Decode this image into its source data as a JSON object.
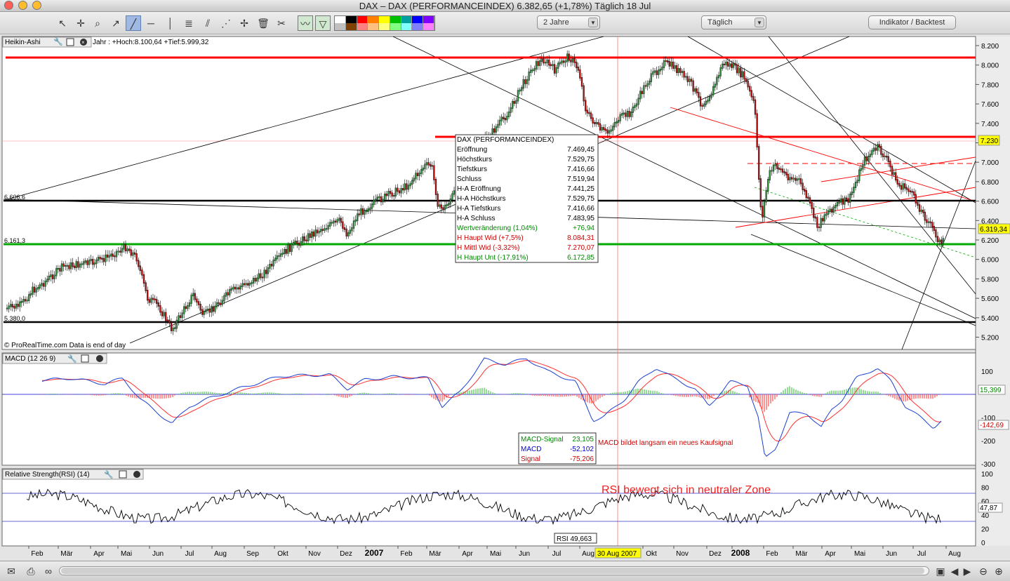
{
  "window": {
    "title": "DAX – DAX (PERFORMANCEINDEX)    6.382,65 (+1,78%)    Täglich  18 Jul"
  },
  "toolbar": {
    "tools": [
      "cursor-icon",
      "crosshair-icon",
      "zoom-icon",
      "add-line-icon",
      "trendline-icon",
      "horizontal-line-icon",
      "vertical-line-icon",
      "fibonacci-icon",
      "channel-icon",
      "parallel-icon",
      "delete-icon",
      "settings-icon",
      "chart-style-icon",
      "chart-style2-icon"
    ],
    "period_value": "2 Jahre",
    "interval_value": "Täglich",
    "indicator_button": "Indikator / Backtest",
    "swatches": [
      "#ffffff",
      "#000000",
      "#ff0000",
      "#ff8000",
      "#ffff00",
      "#00c000",
      "#00a0a0",
      "#0000ff",
      "#8000ff",
      "#c0c0c0",
      "#804000",
      "#ff8080",
      "#ffc080",
      "#ffff80",
      "#80ff80",
      "#80ffff",
      "#8080ff",
      "#ff80ff"
    ]
  },
  "colors": {
    "support": "#00aa00",
    "resistance": "#ff0000",
    "level": "#000000",
    "macd": "#0000cc",
    "signal": "#ff0000",
    "accent": "#ffff00"
  },
  "price_panel": {
    "title": "Heikin-Ashi",
    "range_info": "Jahr : +Hoch:8.100,64 +Tief:5.999,32",
    "level_labels": {
      "l6606": "6.606,6",
      "l6161": "6.161,3",
      "l5380": "5.380,0"
    },
    "markers": {
      "resistance": "7.230",
      "last": "6.319,34"
    },
    "copyright": "© ProRealTime.com  Data is end of day",
    "axis_ticks": [
      "8.200",
      "8.000",
      "7.800",
      "7.600",
      "7.400",
      "7.200",
      "7.000",
      "6.800",
      "6.600",
      "6.400",
      "6.200",
      "6.000",
      "5.800",
      "5.600",
      "5.400",
      "5.200"
    ],
    "tooltip": {
      "title": "DAX (PERFORMANCEINDEX)",
      "rows": [
        {
          "label": "Eröffnung",
          "value": "7.469,45",
          "color": "#000000"
        },
        {
          "label": "Höchstkurs",
          "value": "7.529,75",
          "color": "#000000"
        },
        {
          "label": "Tiefstkurs",
          "value": "7.416,66",
          "color": "#000000"
        },
        {
          "label": "Schluss",
          "value": "7.519,94",
          "color": "#000000"
        },
        {
          "label": "H-A Eröffnung",
          "value": "7.441,25",
          "color": "#000000"
        },
        {
          "label": "H-A Höchstkurs",
          "value": "7.529,75",
          "color": "#000000"
        },
        {
          "label": "H-A Tiefstkurs",
          "value": "7.416,66",
          "color": "#000000"
        },
        {
          "label": "H-A Schluss",
          "value": "7.483,95",
          "color": "#000000"
        },
        {
          "label": "Wertveränderung (1,04%)",
          "value": "+76,94",
          "color": "#008800"
        },
        {
          "label": "H Haupt Wid (+7,5%)",
          "value": "8.084,31",
          "color": "#cc0000"
        },
        {
          "label": "H Mittl Wid (-3,32%)",
          "value": "7.270,07",
          "color": "#cc0000"
        },
        {
          "label": "H Haupt Unt (-17,91%)",
          "value": "6.172,85",
          "color": "#008800"
        }
      ]
    }
  },
  "macd_panel": {
    "title": "MACD (12 26 9)",
    "axis_ticks": [
      "100",
      "-100",
      "-200",
      "-300"
    ],
    "markers": {
      "hist": "15,399",
      "macd": "-142,69"
    },
    "legend": [
      {
        "label": "MACD-Signal",
        "value": "23,105",
        "color": "#008800"
      },
      {
        "label": "MACD",
        "value": "-52,102",
        "color": "#0000cc"
      },
      {
        "label": "Signal",
        "value": "-75,206",
        "color": "#cc0000"
      }
    ],
    "annotation": "MACD bildet langsam ein neues Kaufsignal"
  },
  "rsi_panel": {
    "title": "Relative Strength(RSI) (14)",
    "axis_ticks": [
      "100",
      "80",
      "60",
      "40",
      "20",
      "0"
    ],
    "marker": "47,87",
    "annotation": "RSI bewegt sich in neutraler Zone",
    "value_box": "RSI 49,663"
  },
  "x_axis": {
    "labels": [
      "Feb",
      "Mär",
      "Apr",
      "Mai",
      "Jun",
      "Jul",
      "Aug",
      "Sep",
      "Okt",
      "Nov",
      "Dez",
      "2007",
      "Feb",
      "Mär",
      "Apr",
      "Mai",
      "Jun",
      "Jul",
      "Aug",
      "Okt",
      "Nov",
      "Dez",
      "2008",
      "Feb",
      "Mär",
      "Apr",
      "Mai",
      "Jun",
      "Jul",
      "Aug"
    ],
    "cursor_date": "30 Aug 2007"
  }
}
